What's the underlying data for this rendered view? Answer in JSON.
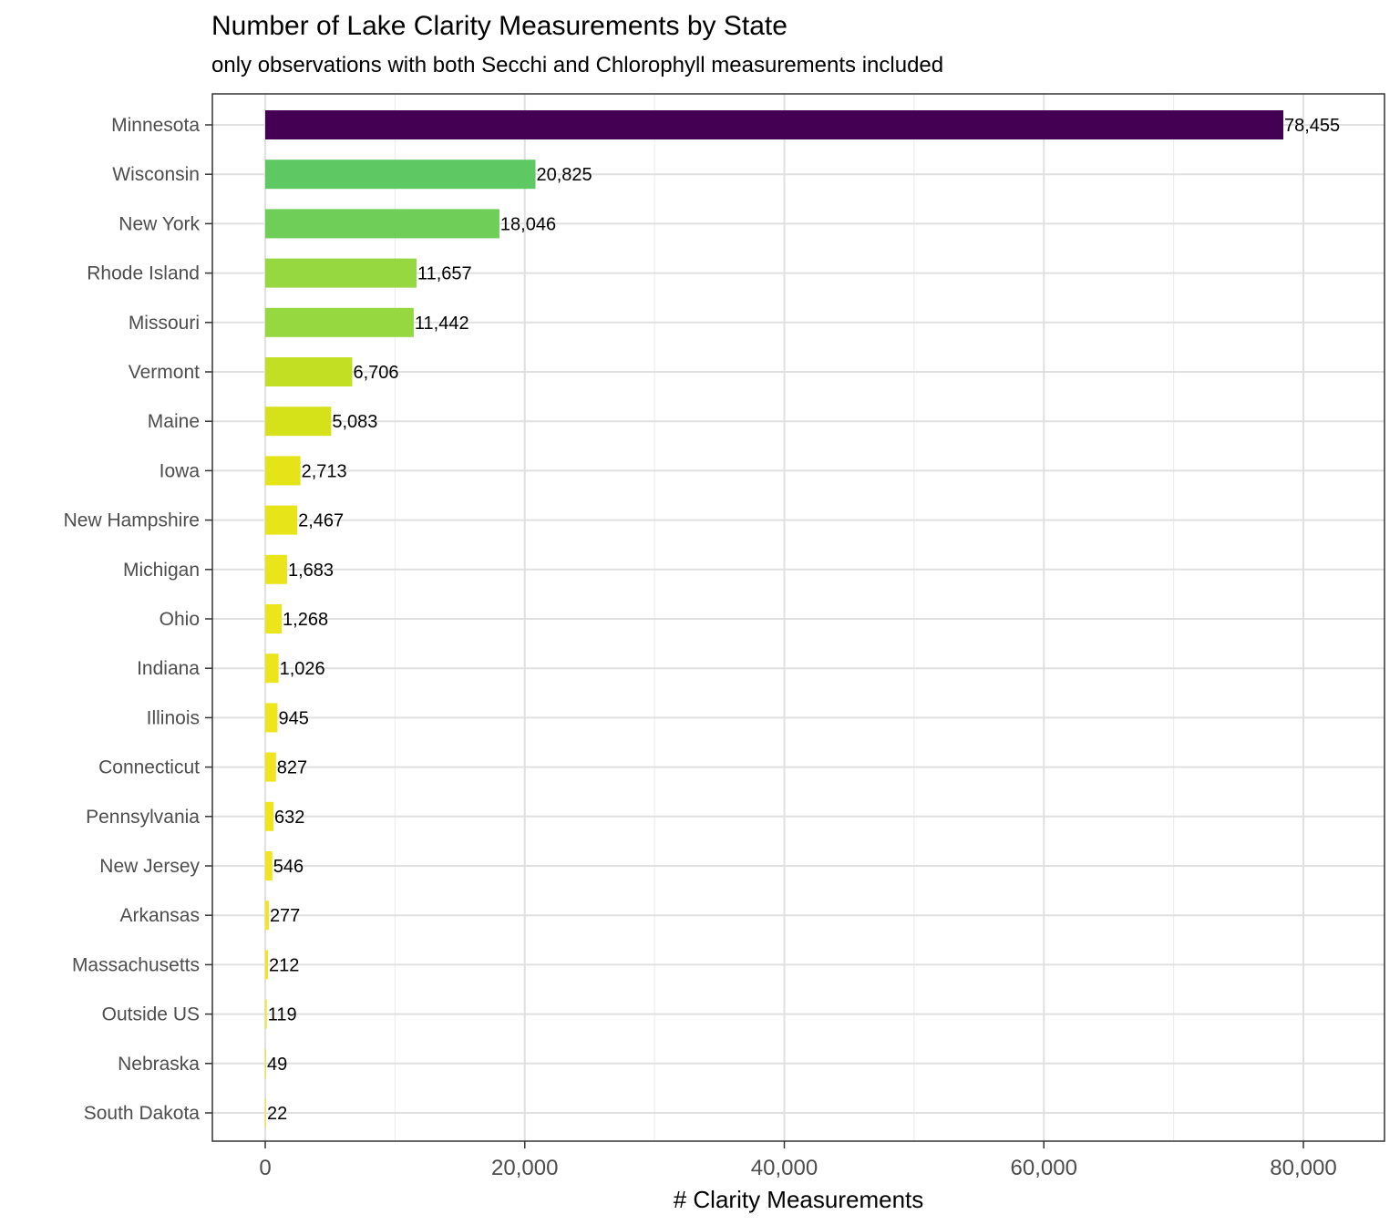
{
  "chart_data": {
    "type": "bar",
    "orientation": "horizontal",
    "title": "Number of Lake Clarity Measurements by State",
    "subtitle": "only observations with both Secchi and Chlorophyll measurements included",
    "xlabel": "# Clarity Measurements",
    "ylabel": "",
    "xlim": [
      -4000,
      86500
    ],
    "x_ticks": [
      0,
      20000,
      40000,
      60000,
      80000
    ],
    "x_tick_labels": [
      "0",
      "20,000",
      "40,000",
      "60,000",
      "80,000"
    ],
    "grid": true,
    "legend": "none",
    "colors": [
      "#440154",
      "#5ec962",
      "#6ece58",
      "#95d840",
      "#95d840",
      "#c2df23",
      "#d5e21a",
      "#e4e419",
      "#e7e419",
      "#e9e51a",
      "#ece51b",
      "#ede51b",
      "#eee51c",
      "#efe51c",
      "#f0e51c",
      "#f1e51d",
      "#f3e61e",
      "#f4e61e",
      "#f5e61f",
      "#f6e61f",
      "#f7e620"
    ],
    "categories": [
      "Minnesota",
      "Wisconsin",
      "New York",
      "Rhode Island",
      "Missouri",
      "Vermont",
      "Maine",
      "Iowa",
      "New Hampshire",
      "Michigan",
      "Ohio",
      "Indiana",
      "Illinois",
      "Connecticut",
      "Pennsylvania",
      "New Jersey",
      "Arkansas",
      "Massachusetts",
      "Outside US",
      "Nebraska",
      "South Dakota"
    ],
    "values": [
      78455,
      20825,
      18046,
      11657,
      11442,
      6706,
      5083,
      2713,
      2467,
      1683,
      1268,
      1026,
      945,
      827,
      632,
      546,
      277,
      212,
      119,
      49,
      22
    ],
    "data_labels": [
      "78,455",
      "20,825",
      "18,046",
      "11,657",
      "11,442",
      "6,706",
      "5,083",
      "2,713",
      "2,467",
      "1,683",
      "1,268",
      "1,026",
      "945",
      "827",
      "632",
      "546",
      "277",
      "212",
      "119",
      "49",
      "22"
    ]
  }
}
